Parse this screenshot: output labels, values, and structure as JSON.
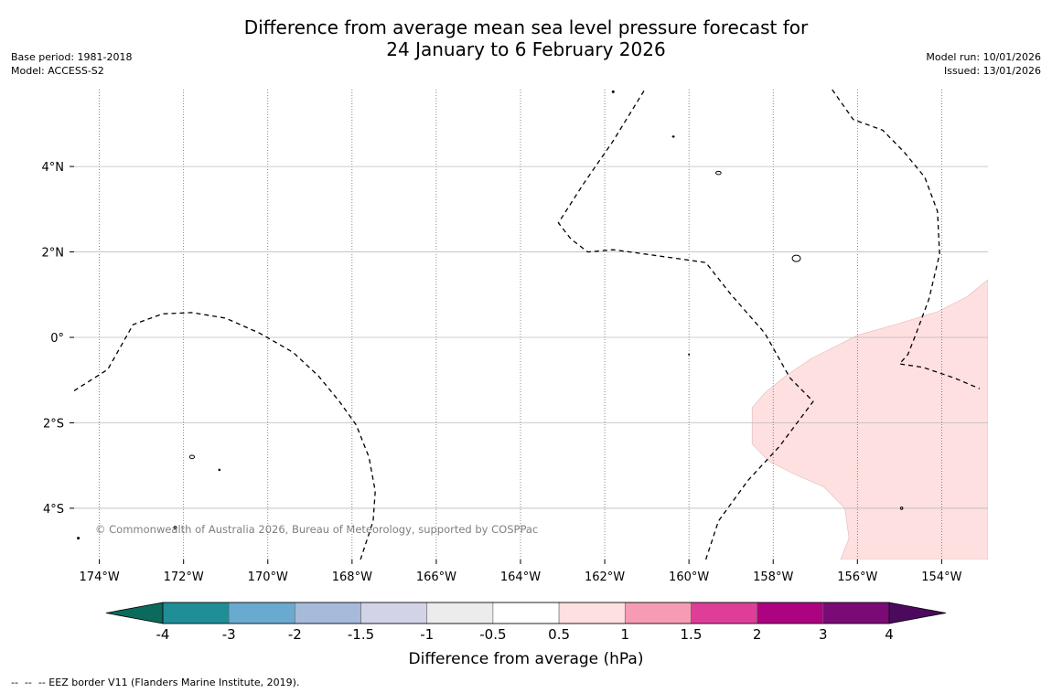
{
  "title": {
    "line1": "Difference from average mean sea level pressure forecast for",
    "line2": "24 January to 6 February 2026"
  },
  "meta_left": {
    "base_period": "Base period: 1981-2018",
    "model": "Model: ACCESS-S2"
  },
  "meta_right": {
    "model_run": "Model run: 10/01/2026",
    "issued": "Issued: 13/01/2026"
  },
  "copyright": "© Commonwealth of Australia 2026, Bureau of Meteorology, supported by COSPPac",
  "map": {
    "lon_range": [
      -174.6,
      -152.9
    ],
    "lat_range": [
      -5.2,
      5.8
    ],
    "lon_ticks": [
      {
        "value": -174,
        "label": "174°W"
      },
      {
        "value": -172,
        "label": "172°W"
      },
      {
        "value": -170,
        "label": "170°W"
      },
      {
        "value": -168,
        "label": "168°W"
      },
      {
        "value": -166,
        "label": "166°W"
      },
      {
        "value": -164,
        "label": "164°W"
      },
      {
        "value": -162,
        "label": "162°W"
      },
      {
        "value": -160,
        "label": "160°W"
      },
      {
        "value": -158,
        "label": "158°W"
      },
      {
        "value": -156,
        "label": "156°W"
      },
      {
        "value": -154,
        "label": "154°W"
      }
    ],
    "lat_ticks": [
      {
        "value": 4,
        "label": "4°N"
      },
      {
        "value": 2,
        "label": "2°N"
      },
      {
        "value": 0,
        "label": "0°"
      },
      {
        "value": -2,
        "label": "2°S"
      },
      {
        "value": -4,
        "label": "4°S"
      }
    ],
    "positive_anomaly_region": {
      "category": "0.5 to 1 hPa",
      "color": "#fde0df",
      "polygon": [
        [
          -152.9,
          1.35
        ],
        [
          -153.4,
          0.95
        ],
        [
          -154.1,
          0.6
        ],
        [
          -155.1,
          0.3
        ],
        [
          -156.0,
          0.05
        ],
        [
          -156.5,
          -0.2
        ],
        [
          -157.1,
          -0.5
        ],
        [
          -157.7,
          -0.9
        ],
        [
          -158.2,
          -1.3
        ],
        [
          -158.5,
          -1.65
        ],
        [
          -158.5,
          -2.5
        ],
        [
          -158.1,
          -2.9
        ],
        [
          -157.5,
          -3.2
        ],
        [
          -156.8,
          -3.5
        ],
        [
          -156.3,
          -4.0
        ],
        [
          -156.2,
          -4.7
        ],
        [
          -156.4,
          -5.2
        ],
        [
          -152.9,
          -5.2
        ]
      ]
    },
    "eez_borders": [
      [
        [
          -174.6,
          -1.25
        ],
        [
          -173.8,
          -0.75
        ],
        [
          -173.2,
          0.3
        ],
        [
          -172.5,
          0.55
        ],
        [
          -171.8,
          0.58
        ],
        [
          -171.0,
          0.45
        ],
        [
          -170.2,
          0.1
        ],
        [
          -169.4,
          -0.35
        ],
        [
          -168.8,
          -0.9
        ],
        [
          -168.3,
          -1.5
        ],
        [
          -167.9,
          -2.05
        ],
        [
          -167.6,
          -2.8
        ],
        [
          -167.45,
          -3.6
        ],
        [
          -167.5,
          -4.3
        ],
        [
          -167.8,
          -5.2
        ]
      ],
      [
        [
          -159.6,
          -5.2
        ],
        [
          -159.3,
          -4.3
        ],
        [
          -158.6,
          -3.35
        ],
        [
          -157.85,
          -2.55
        ],
        [
          -157.05,
          -1.5
        ],
        [
          -157.6,
          -0.95
        ],
        [
          -158.2,
          0.1
        ],
        [
          -159.0,
          1.0
        ],
        [
          -159.6,
          1.75
        ],
        [
          -160.3,
          1.85
        ],
        [
          -161.4,
          2.0
        ],
        [
          -161.8,
          2.05
        ],
        [
          -162.4,
          2.0
        ],
        [
          -162.8,
          2.3
        ],
        [
          -163.1,
          2.68
        ],
        [
          -162.5,
          3.6
        ],
        [
          -161.8,
          4.6
        ],
        [
          -161.05,
          5.8
        ]
      ],
      [
        [
          -156.6,
          5.8
        ],
        [
          -156.1,
          5.1
        ],
        [
          -155.4,
          4.85
        ],
        [
          -154.9,
          4.35
        ],
        [
          -154.4,
          3.75
        ],
        [
          -154.1,
          2.95
        ],
        [
          -154.05,
          1.95
        ],
        [
          -154.3,
          0.9
        ],
        [
          -154.6,
          0.1
        ],
        [
          -154.8,
          -0.4
        ],
        [
          -155.0,
          -0.62
        ],
        [
          -154.45,
          -0.7
        ],
        [
          -153.7,
          -0.95
        ],
        [
          -153.1,
          -1.2
        ]
      ]
    ],
    "islands": [
      {
        "lon": -159.3,
        "lat": 3.85,
        "rx": 2.8,
        "ry": 1.8
      },
      {
        "lon": -157.45,
        "lat": 1.85,
        "rx": 4.5,
        "ry": 3.5
      },
      {
        "lon": -171.8,
        "lat": -2.8,
        "rx": 2.6,
        "ry": 1.8
      },
      {
        "lon": -171.15,
        "lat": -3.1,
        "rx": 0.8,
        "ry": 0.8
      },
      {
        "lon": -172.2,
        "lat": -4.45,
        "rx": 1.5,
        "ry": 1.2
      },
      {
        "lon": -154.95,
        "lat": -4.0,
        "rx": 1.3,
        "ry": 1.3
      },
      {
        "lon": -160.37,
        "lat": 4.7,
        "rx": 1.0,
        "ry": 0.7
      },
      {
        "lon": -161.8,
        "lat": 5.75,
        "rx": 1.0,
        "ry": 1.0
      },
      {
        "lon": -160.0,
        "lat": -0.4,
        "rx": 0.5,
        "ry": 0.5
      },
      {
        "lon": -174.5,
        "lat": -4.7,
        "rx": 1.0,
        "ry": 1.0
      }
    ]
  },
  "colorbar": {
    "label": "Difference from average (hPa)",
    "under_color": "#0b6a5c",
    "over_color": "#4b0a5e",
    "bins": [
      {
        "from": "-4",
        "to": "-3",
        "color": "#1f8e96"
      },
      {
        "from": "-3",
        "to": "-2",
        "color": "#6aaad1"
      },
      {
        "from": "-2",
        "to": "-1.5",
        "color": "#a6bada"
      },
      {
        "from": "-1.5",
        "to": "-1",
        "color": "#d3d3e8"
      },
      {
        "from": "-1",
        "to": "-0.5",
        "color": "#ececec"
      },
      {
        "from": "-0.5",
        "to": "0.5",
        "color": "#ffffff"
      },
      {
        "from": "0.5",
        "to": "1",
        "color": "#fde0df"
      },
      {
        "from": "1",
        "to": "1.5",
        "color": "#f79bb5"
      },
      {
        "from": "1.5",
        "to": "2",
        "color": "#df3e98"
      },
      {
        "from": "2",
        "to": "3",
        "color": "#ac0380"
      },
      {
        "from": "3",
        "to": "4",
        "color": "#7a0a75"
      }
    ],
    "tick_labels": [
      "-4",
      "-3",
      "-2",
      "-1.5",
      "-1",
      "-0.5",
      "0.5",
      "1",
      "1.5",
      "2",
      "3",
      "4"
    ]
  },
  "footnote": "--  --  -- EEZ border V11 (Flanders Marine Institute, 2019)."
}
